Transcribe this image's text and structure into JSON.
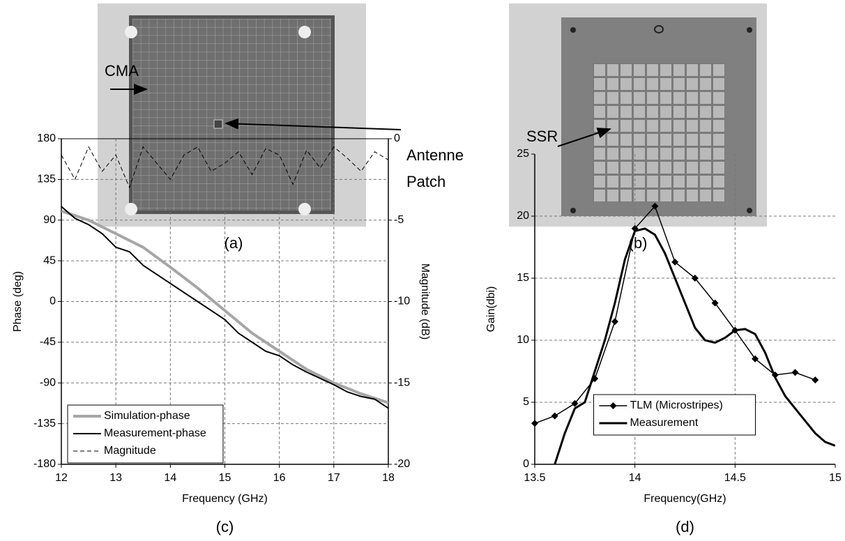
{
  "photos": [
    {
      "labels": [
        "CMA",
        "Antenne",
        "Patch"
      ],
      "caption": "(a)"
    },
    {
      "labels": [
        "SSR"
      ],
      "caption": "(b)"
    }
  ],
  "chart_data": [
    {
      "type": "line",
      "caption": "(c)",
      "x_label": "Frequency (GHz)",
      "y_label": "Phase (deg)",
      "y2_label": "Magnitude (dB)",
      "xlim": [
        12,
        18
      ],
      "xticks": [
        12,
        13,
        14,
        15,
        16,
        17,
        18
      ],
      "ylim": [
        -180,
        180
      ],
      "yticks": [
        -180,
        -135,
        -90,
        -45,
        0,
        45,
        90,
        135,
        180
      ],
      "y2lim": [
        -20,
        0
      ],
      "y2ticks": [
        -20,
        -15,
        -10,
        -5,
        0
      ],
      "grid": true,
      "legend": "lower left",
      "series": [
        {
          "name": "Simulation-phase",
          "color": "#a6a6a6",
          "width": 4,
          "style": "solid",
          "x": [
            12,
            12.5,
            13,
            13.5,
            14,
            14.5,
            15,
            15.5,
            16,
            16.5,
            17,
            17.5,
            18
          ],
          "values": [
            100,
            90,
            75,
            60,
            38,
            15,
            -10,
            -35,
            -55,
            -75,
            -90,
            -102,
            -112
          ]
        },
        {
          "name": "Measurement-phase",
          "color": "#000000",
          "width": 2,
          "style": "solid",
          "x": [
            12,
            12.25,
            12.5,
            12.75,
            13,
            13.25,
            13.5,
            13.75,
            14,
            14.25,
            14.5,
            14.75,
            15,
            15.25,
            15.5,
            15.75,
            16,
            16.25,
            16.5,
            16.75,
            17,
            17.25,
            17.5,
            17.75,
            18
          ],
          "values": [
            105,
            92,
            85,
            75,
            60,
            55,
            40,
            30,
            20,
            10,
            0,
            -10,
            -20,
            -35,
            -45,
            -55,
            -60,
            -70,
            -78,
            -85,
            -92,
            -100,
            -105,
            -108,
            -118
          ]
        },
        {
          "name": "Magnitude",
          "color": "#000000",
          "width": 1,
          "style": "dashed",
          "axis": "y2",
          "x": [
            12,
            12.25,
            12.5,
            12.75,
            13,
            13.25,
            13.5,
            13.75,
            14,
            14.25,
            14.5,
            14.75,
            15,
            15.25,
            15.5,
            15.75,
            16,
            16.25,
            16.5,
            16.75,
            17,
            17.25,
            17.5,
            17.75,
            18
          ],
          "values": [
            -1,
            -2.5,
            -0.5,
            -2,
            -1,
            -3,
            -0.5,
            -1.5,
            -2.5,
            -1,
            -0.5,
            -2,
            -1.5,
            -0.8,
            -2.2,
            -0.6,
            -1,
            -2.8,
            -0.7,
            -1.8,
            -0.5,
            -1.2,
            -2,
            -0.8,
            -1.3
          ]
        }
      ]
    },
    {
      "type": "line",
      "caption": "(d)",
      "x_label": "Frequency(GHz)",
      "y_label": "Gain(dbi)",
      "xlim": [
        13.5,
        15
      ],
      "xticks": [
        13.5,
        14,
        14.5,
        15
      ],
      "ylim": [
        0,
        25
      ],
      "yticks": [
        0,
        5,
        10,
        15,
        20,
        25
      ],
      "grid": true,
      "legend": "lower center",
      "series": [
        {
          "name": "TLM (Microstripes)",
          "color": "#000000",
          "width": 1.5,
          "style": "solid",
          "marker": "diamond",
          "x": [
            13.5,
            13.6,
            13.7,
            13.8,
            13.9,
            14,
            14.1,
            14.2,
            14.3,
            14.4,
            14.5,
            14.6,
            14.7,
            14.8,
            14.9
          ],
          "values": [
            3.3,
            3.9,
            4.9,
            6.9,
            11.5,
            19,
            20.8,
            16.3,
            15,
            13,
            10.8,
            8.5,
            7.2,
            7.4,
            6.8
          ]
        },
        {
          "name": "Measurement",
          "color": "#000000",
          "width": 3,
          "style": "solid",
          "x": [
            13.6,
            13.65,
            13.7,
            13.75,
            13.8,
            13.85,
            13.9,
            13.95,
            14,
            14.05,
            14.1,
            14.15,
            14.2,
            14.25,
            14.3,
            14.35,
            14.4,
            14.45,
            14.5,
            14.55,
            14.6,
            14.65,
            14.7,
            14.75,
            14.8,
            14.85,
            14.9,
            14.95,
            15
          ],
          "values": [
            0,
            2.5,
            4.5,
            5,
            7.5,
            10,
            13,
            16.5,
            18.8,
            19,
            18.5,
            17,
            15,
            13,
            11,
            10,
            9.8,
            10.2,
            10.8,
            10.9,
            10.5,
            9,
            7,
            5.5,
            4.5,
            3.5,
            2.5,
            1.8,
            1.5
          ]
        }
      ]
    }
  ]
}
